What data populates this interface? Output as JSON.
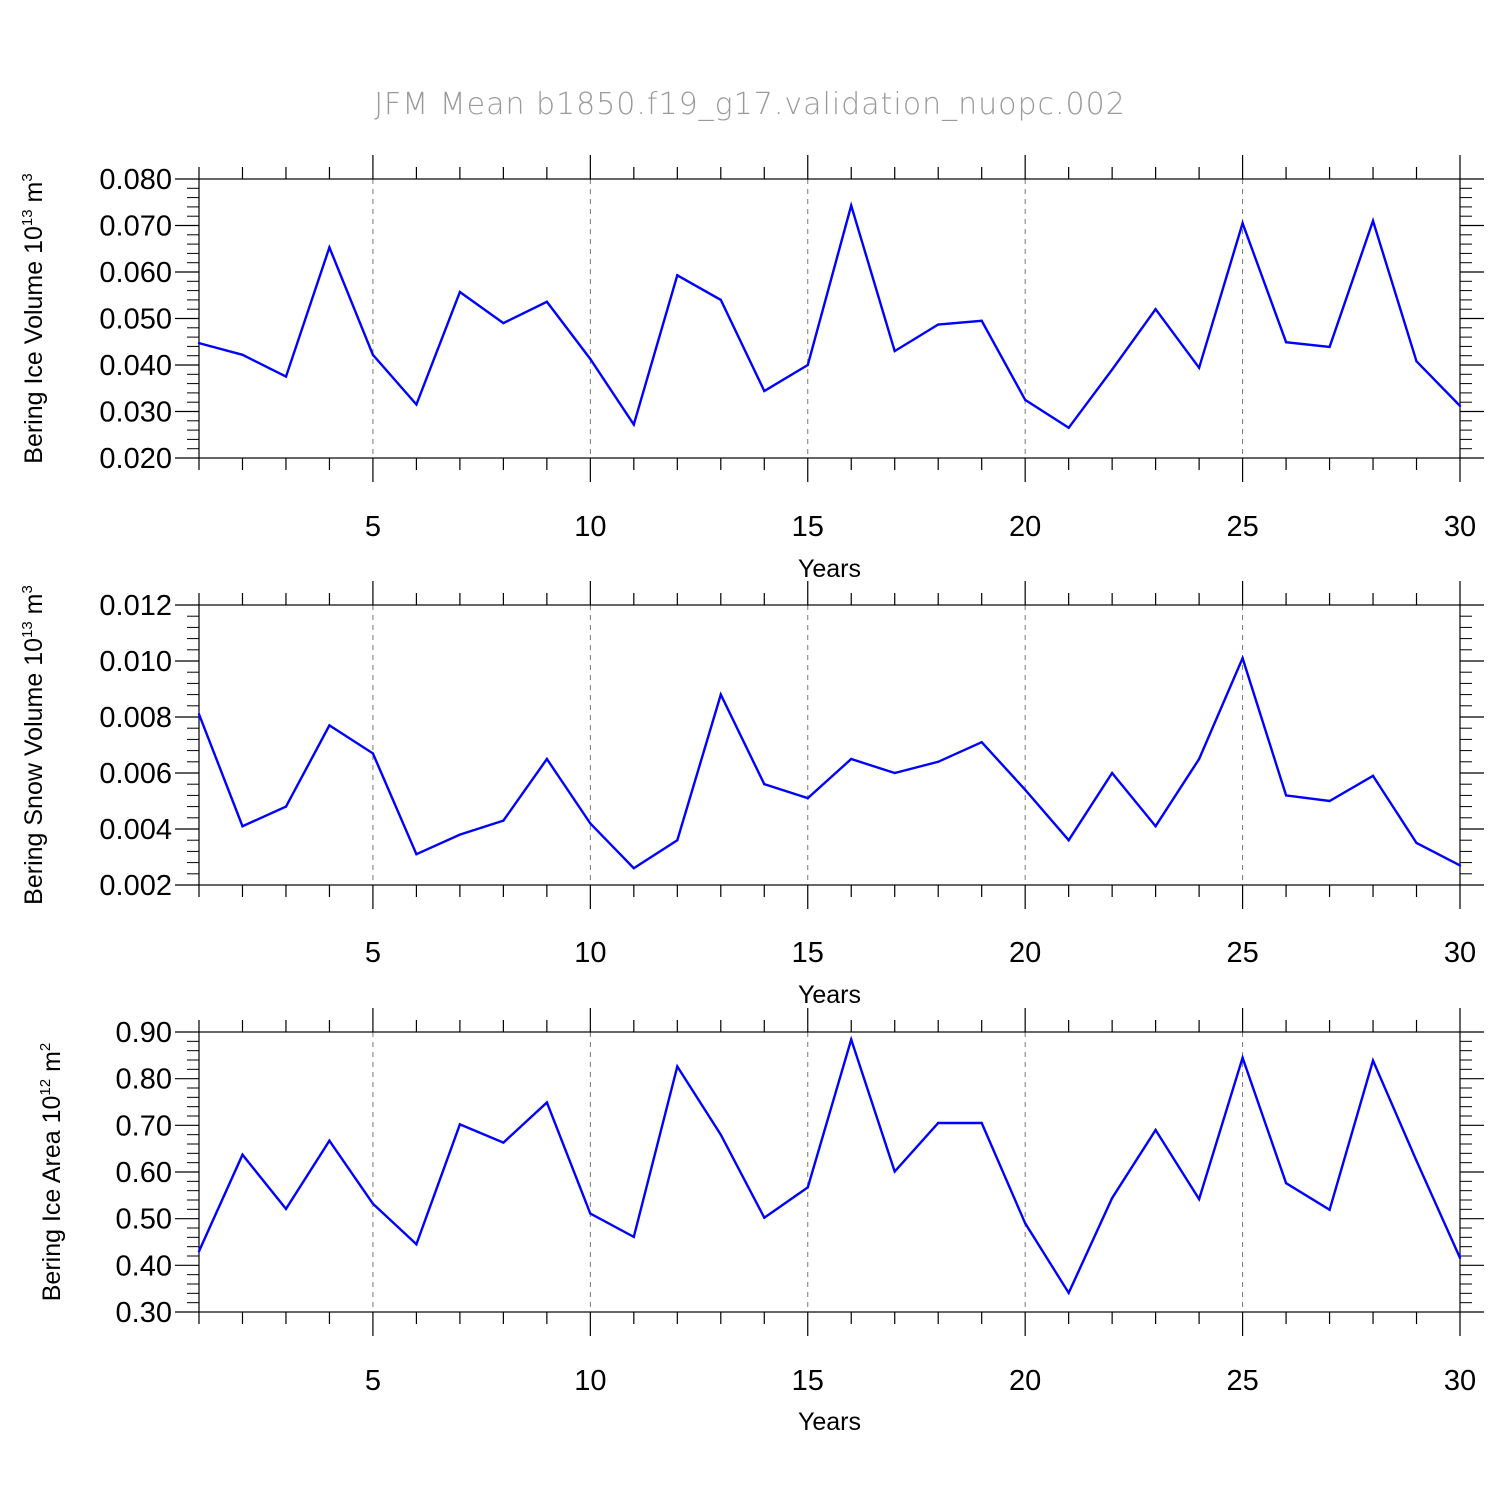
{
  "title": "JFM Mean b1850.f19_g17.validation_nuopc.002",
  "colors": {
    "series": "#0000ff",
    "axis": "#000000",
    "grid": "#777777",
    "title": "#9a9a9a"
  },
  "chart_data": [
    {
      "type": "line",
      "title": "",
      "xlabel": "Years",
      "ylabel": "Bering Ice Volume 10^13 m^3",
      "ylabel_parts": {
        "main": "Bering Ice Volume 10",
        "exp": "13",
        "unit": " m",
        "unit_exp": "3"
      },
      "xlim": [
        1,
        30
      ],
      "ylim": [
        0.02,
        0.08
      ],
      "xticks": [
        5,
        10,
        15,
        20,
        25,
        30
      ],
      "yticks": [
        0.02,
        0.03,
        0.04,
        0.05,
        0.06,
        0.07,
        0.08
      ],
      "ytick_labels": [
        "0.020",
        "0.030",
        "0.040",
        "0.050",
        "0.060",
        "0.070",
        "0.080"
      ],
      "grid": "vertical-dashed",
      "x": [
        1,
        2,
        3,
        4,
        5,
        6,
        7,
        8,
        9,
        10,
        11,
        12,
        13,
        14,
        15,
        16,
        17,
        18,
        19,
        20,
        21,
        22,
        23,
        24,
        25,
        26,
        27,
        28,
        29,
        30
      ],
      "values": [
        0.0447,
        0.0422,
        0.0375,
        0.0653,
        0.0422,
        0.0315,
        0.0557,
        0.049,
        0.0536,
        0.0413,
        0.0272,
        0.0593,
        0.054,
        0.0344,
        0.04,
        0.0743,
        0.043,
        0.0487,
        0.0495,
        0.0325,
        0.0265,
        0.039,
        0.052,
        0.0394,
        0.0705,
        0.0449,
        0.0439,
        0.071,
        0.0408,
        0.0312
      ]
    },
    {
      "type": "line",
      "title": "",
      "xlabel": "Years",
      "ylabel": "Bering Snow Volume 10^13 m^3",
      "ylabel_parts": {
        "main": "Bering Snow Volume 10",
        "exp": "13",
        "unit": " m",
        "unit_exp": "3"
      },
      "xlim": [
        1,
        30
      ],
      "ylim": [
        0.002,
        0.012
      ],
      "xticks": [
        5,
        10,
        15,
        20,
        25,
        30
      ],
      "yticks": [
        0.002,
        0.004,
        0.006,
        0.008,
        0.01,
        0.012
      ],
      "ytick_labels": [
        "0.002",
        "0.004",
        "0.006",
        "0.008",
        "0.010",
        "0.012"
      ],
      "grid": "vertical-dashed",
      "x": [
        1,
        2,
        3,
        4,
        5,
        6,
        7,
        8,
        9,
        10,
        11,
        12,
        13,
        14,
        15,
        16,
        17,
        18,
        19,
        20,
        21,
        22,
        23,
        24,
        25,
        26,
        27,
        28,
        29,
        30
      ],
      "values": [
        0.0081,
        0.0041,
        0.0048,
        0.0077,
        0.0067,
        0.0031,
        0.0038,
        0.0043,
        0.0065,
        0.0042,
        0.0026,
        0.0036,
        0.0088,
        0.0056,
        0.0051,
        0.0065,
        0.006,
        0.0064,
        0.0071,
        0.0054,
        0.0036,
        0.006,
        0.0041,
        0.0065,
        0.0101,
        0.0052,
        0.005,
        0.0059,
        0.0035,
        0.0027
      ]
    },
    {
      "type": "line",
      "title": "",
      "xlabel": "Years",
      "ylabel": "Bering Ice Area 10^12 m^2",
      "ylabel_parts": {
        "main": "Bering Ice Area 10",
        "exp": "12",
        "unit": " m",
        "unit_exp": "2"
      },
      "xlim": [
        1,
        30
      ],
      "ylim": [
        0.3,
        0.9
      ],
      "xticks": [
        5,
        10,
        15,
        20,
        25,
        30
      ],
      "yticks": [
        0.3,
        0.4,
        0.5,
        0.6,
        0.7,
        0.8,
        0.9
      ],
      "ytick_labels": [
        "0.30",
        "0.40",
        "0.50",
        "0.60",
        "0.70",
        "0.80",
        "0.90"
      ],
      "grid": "vertical-dashed",
      "x": [
        1,
        2,
        3,
        4,
        5,
        6,
        7,
        8,
        9,
        10,
        11,
        12,
        13,
        14,
        15,
        16,
        17,
        18,
        19,
        20,
        21,
        22,
        23,
        24,
        25,
        26,
        27,
        28,
        29,
        30
      ],
      "values": [
        0.43,
        0.637,
        0.521,
        0.667,
        0.532,
        0.445,
        0.702,
        0.663,
        0.749,
        0.511,
        0.461,
        0.826,
        0.68,
        0.502,
        0.567,
        0.884,
        0.601,
        0.705,
        0.705,
        0.49,
        0.341,
        0.544,
        0.69,
        0.542,
        0.845,
        0.576,
        0.519,
        0.839,
        0.624,
        0.416
      ]
    }
  ]
}
